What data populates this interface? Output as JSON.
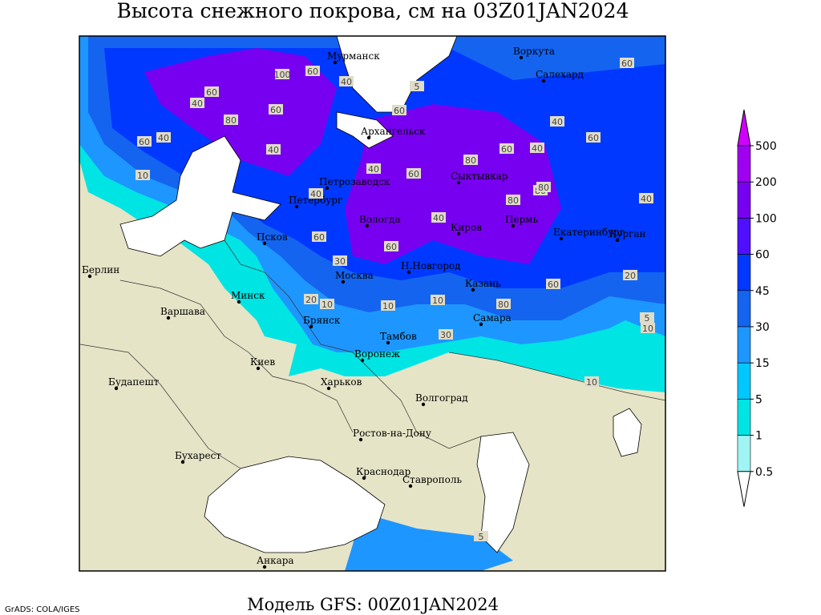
{
  "title": "Высота снежного покрова, см на 03Z01JAN2024",
  "footer": "Модель GFS: 00Z01JAN2024",
  "credit": "GrADS: COLA/IGES",
  "legend": {
    "ticks": [
      500,
      200,
      100,
      60,
      45,
      30,
      15,
      5,
      1,
      0.5
    ],
    "colors": [
      "#d000ff",
      "#a000f0",
      "#7800f0",
      "#5010ff",
      "#0038ff",
      "#1464f0",
      "#1e96ff",
      "#00c8ff",
      "#00e4e4",
      "#a0f4f4",
      "#ffffff"
    ]
  },
  "cities": [
    "Мурманск",
    "Воркута",
    "Салехард",
    "Архангельск",
    "Петрозаводск",
    "Сыктывкар",
    "Петербург",
    "Вологда",
    "Киров",
    "Пермь",
    "Екатеринбург",
    "Курган",
    "Псков",
    "Берлин",
    "Н.Новгород",
    "Москва",
    "Казань",
    "Минск",
    "Варшава",
    "Самара",
    "Брянск",
    "Тамбов",
    "Киев",
    "Воронеж",
    "Будапешт",
    "Харьков",
    "Волгоград",
    "Ростов-на-Дону",
    "Бухарест",
    "Краснодар",
    "Ставрополь",
    "Анкара"
  ],
  "snow_labels": [
    100,
    60,
    40,
    60,
    40,
    80,
    60,
    40,
    60,
    40,
    40,
    60,
    80,
    60,
    40,
    80,
    80,
    60,
    40,
    60,
    80,
    40,
    60,
    40,
    60,
    80,
    60,
    40,
    30,
    10,
    20,
    10,
    10,
    30,
    60,
    20,
    10,
    5,
    10,
    5,
    10,
    5
  ]
}
